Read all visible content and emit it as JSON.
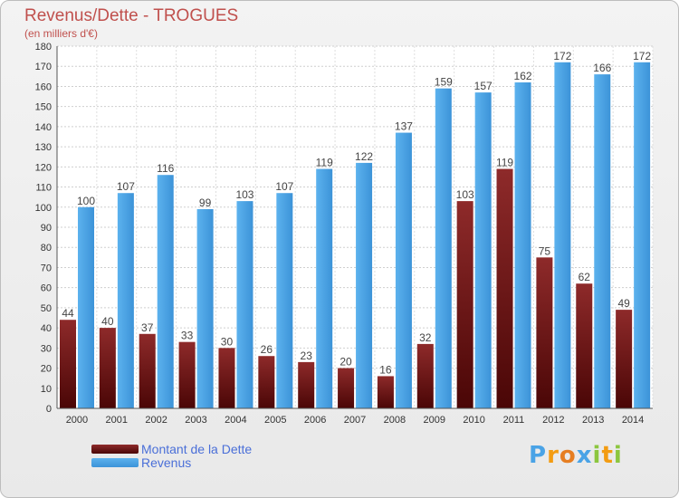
{
  "title": "Revenus/Dette - TROGUES",
  "subtitle": "(en milliers d'€)",
  "legend": {
    "debt_label": "Montant de la Dette",
    "revenue_label": "Revenus"
  },
  "logo": {
    "p": "P",
    "r": "r",
    "o": "o",
    "x": "x",
    "i1": "i",
    "t": "t",
    "i2": "i"
  },
  "colors": {
    "debt": "#7a1414",
    "revenue": "#4aa3e6",
    "title": "#c0504d",
    "legend_text": "#4a6fd8"
  },
  "chart_data": {
    "type": "bar",
    "categories": [
      "2000",
      "2001",
      "2002",
      "2003",
      "2004",
      "2005",
      "2006",
      "2007",
      "2008",
      "2009",
      "2010",
      "2011",
      "2012",
      "2013",
      "2014"
    ],
    "series": [
      {
        "name": "Montant de la Dette",
        "values": [
          44,
          40,
          37,
          33,
          30,
          26,
          23,
          20,
          16,
          32,
          103,
          119,
          75,
          62,
          49
        ]
      },
      {
        "name": "Revenus",
        "values": [
          100,
          107,
          116,
          99,
          103,
          107,
          119,
          122,
          137,
          159,
          157,
          162,
          172,
          166,
          172
        ]
      }
    ],
    "ylim": [
      0,
      180
    ],
    "yticks": [
      0,
      10,
      20,
      30,
      40,
      50,
      60,
      70,
      80,
      90,
      100,
      110,
      120,
      130,
      140,
      150,
      160,
      170,
      180
    ],
    "grid": true,
    "legend_position": "bottom-left"
  }
}
